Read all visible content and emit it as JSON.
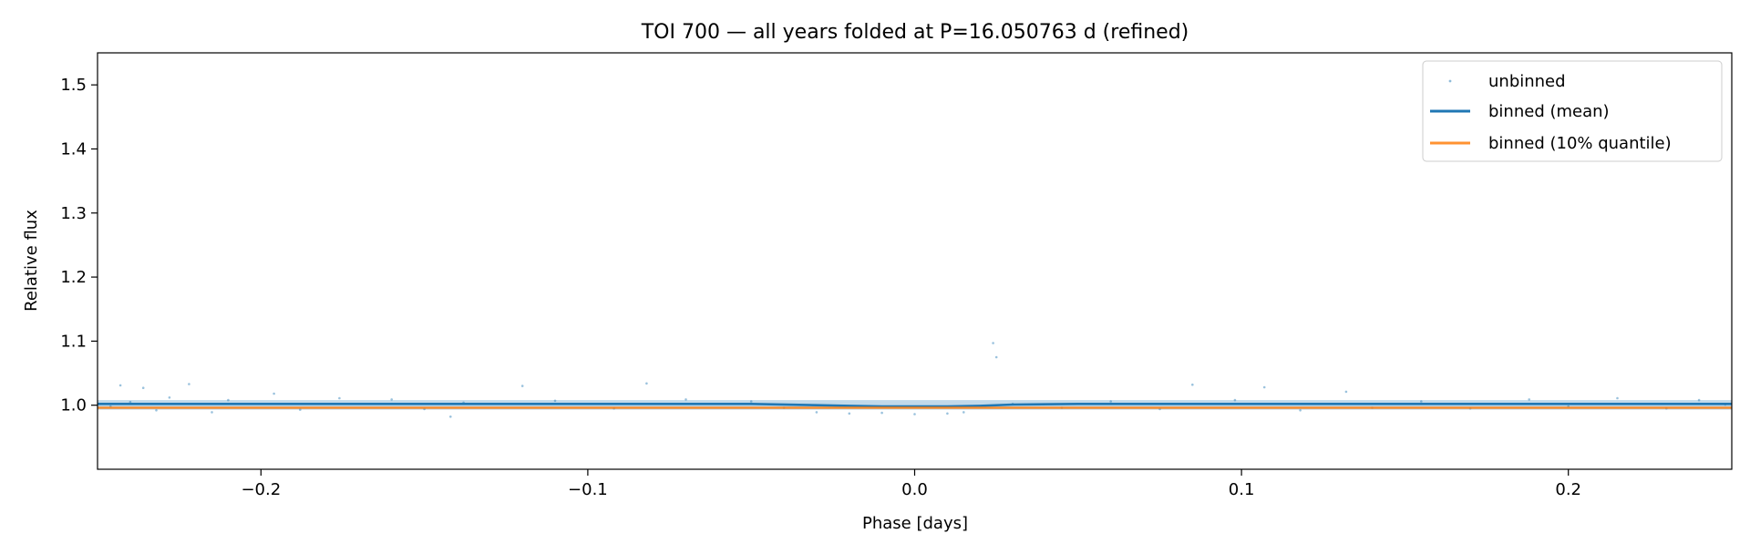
{
  "chart_data": {
    "type": "scatter",
    "title": "TOI 700 — all years folded at P=16.050763 d (refined)",
    "xlabel": "Phase [days]",
    "ylabel": "Relative flux",
    "xlim": [
      -0.25,
      0.25
    ],
    "ylim": [
      0.9,
      1.55
    ],
    "x_ticks": [
      -0.2,
      -0.1,
      0.0,
      0.1,
      0.2
    ],
    "x_tick_labels": [
      "−0.2",
      "−0.1",
      "0.0",
      "0.1",
      "0.2"
    ],
    "y_ticks": [
      1.0,
      1.1,
      1.2,
      1.3,
      1.4,
      1.5
    ],
    "y_tick_labels": [
      "1.0",
      "1.1",
      "1.2",
      "1.3",
      "1.4",
      "1.5"
    ],
    "grid": false,
    "legend_position": "top-right",
    "series": [
      {
        "name": "unbinned",
        "kind": "scatter",
        "color": "#1f77b4",
        "points": [
          [
            -0.249,
            1.002
          ],
          [
            -0.246,
            0.998
          ],
          [
            -0.243,
            1.031
          ],
          [
            -0.24,
            1.005
          ],
          [
            -0.236,
            1.027
          ],
          [
            -0.232,
            0.992
          ],
          [
            -0.228,
            1.012
          ],
          [
            -0.222,
            1.033
          ],
          [
            -0.215,
            0.989
          ],
          [
            -0.21,
            1.008
          ],
          [
            -0.196,
            1.018
          ],
          [
            -0.188,
            0.993
          ],
          [
            -0.176,
            1.011
          ],
          [
            -0.16,
            1.009
          ],
          [
            -0.15,
            0.994
          ],
          [
            -0.142,
            0.982
          ],
          [
            -0.138,
            1.004
          ],
          [
            -0.12,
            1.03
          ],
          [
            -0.11,
            1.007
          ],
          [
            -0.092,
            0.995
          ],
          [
            -0.082,
            1.034
          ],
          [
            -0.07,
            1.009
          ],
          [
            -0.05,
            1.006
          ],
          [
            -0.04,
            0.996
          ],
          [
            -0.03,
            0.989
          ],
          [
            -0.02,
            0.987
          ],
          [
            -0.01,
            0.988
          ],
          [
            0.0,
            0.986
          ],
          [
            0.01,
            0.987
          ],
          [
            0.015,
            0.989
          ],
          [
            0.024,
            1.097
          ],
          [
            0.025,
            1.075
          ],
          [
            0.03,
            1.002
          ],
          [
            0.045,
            0.996
          ],
          [
            0.06,
            1.006
          ],
          [
            0.075,
            0.994
          ],
          [
            0.085,
            1.032
          ],
          [
            0.098,
            1.008
          ],
          [
            0.107,
            1.028
          ],
          [
            0.118,
            0.992
          ],
          [
            0.132,
            1.021
          ],
          [
            0.14,
            0.996
          ],
          [
            0.155,
            1.006
          ],
          [
            0.17,
            0.995
          ],
          [
            0.188,
            1.009
          ],
          [
            0.2,
            0.998
          ],
          [
            0.215,
            1.011
          ],
          [
            0.23,
            0.995
          ],
          [
            0.24,
            1.008
          ],
          [
            0.248,
            1.001
          ]
        ]
      },
      {
        "name": "binned (mean)",
        "kind": "line",
        "color": "#1f77b4",
        "x": [
          -0.25,
          -0.2,
          -0.15,
          -0.1,
          -0.05,
          -0.03,
          -0.02,
          -0.01,
          0.0,
          0.01,
          0.02,
          0.03,
          0.05,
          0.1,
          0.15,
          0.2,
          0.25
        ],
        "y": [
          1.002,
          1.002,
          1.002,
          1.002,
          1.002,
          1.0,
          0.999,
          0.998,
          0.998,
          0.998,
          0.999,
          1.001,
          1.002,
          1.002,
          1.002,
          1.002,
          1.002
        ]
      },
      {
        "name": "binned (10% quantile)",
        "kind": "line",
        "color": "#ff7f0e",
        "x": [
          -0.25,
          -0.2,
          -0.15,
          -0.1,
          -0.05,
          0.0,
          0.05,
          0.1,
          0.15,
          0.2,
          0.25
        ],
        "y": [
          0.996,
          0.996,
          0.996,
          0.996,
          0.996,
          0.996,
          0.996,
          0.996,
          0.996,
          0.996,
          0.996
        ]
      }
    ]
  }
}
